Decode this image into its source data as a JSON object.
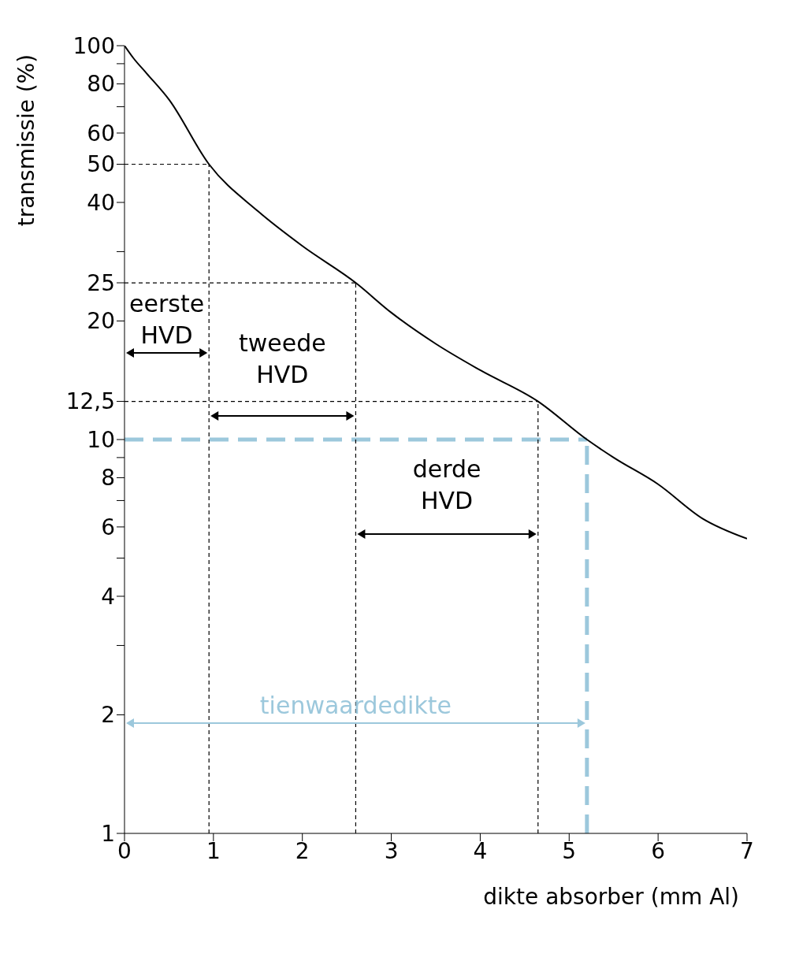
{
  "chart_data": {
    "type": "line",
    "xlabel": "dikte absorber (mm Al)",
    "ylabel": "transmissie (%)",
    "x": [
      0,
      0.1,
      0.25,
      0.5,
      0.95,
      1.5,
      2,
      2.6,
      3,
      3.5,
      4,
      4.65,
      5.2,
      5.5,
      6,
      6.5,
      7
    ],
    "series": [
      {
        "color": "#000000",
        "values": [
          100,
          93,
          85,
          73,
          50,
          38,
          31,
          25,
          21,
          17.5,
          15,
          12.5,
          10,
          9,
          7.7,
          6.3,
          5.6
        ]
      }
    ],
    "log": "y",
    "xlim": [
      0,
      7
    ],
    "ylim": [
      1,
      100
    ],
    "xticks": [
      0,
      1,
      2,
      3,
      4,
      5,
      6,
      7
    ],
    "yticks": [
      1,
      2,
      {
        "value": 3,
        "label": null
      },
      4,
      {
        "value": 5,
        "label": null
      },
      6,
      {
        "value": 7,
        "label": null
      },
      8,
      {
        "value": 9,
        "label": null
      },
      10,
      {
        "value": 12.5,
        "label": "12,5"
      },
      20,
      25,
      {
        "value": 30,
        "label": null
      },
      40,
      50,
      60,
      {
        "value": 70,
        "label": null
      },
      80,
      {
        "value": 90,
        "label": null
      },
      100
    ],
    "marker": "none",
    "line_style": "solid",
    "ref_lines": [
      {
        "axis": "y",
        "value": 50,
        "color": "#000000",
        "line_style": "dotted"
      },
      {
        "axis": "y",
        "value": 25,
        "color": "#000000",
        "line_style": "dotted"
      },
      {
        "axis": "y",
        "value": 12.5,
        "color": "#000000",
        "line_style": "dotted"
      },
      {
        "axis": "y",
        "value": 10,
        "color": "#9cc8dc",
        "line_style": "dashed"
      },
      {
        "axis": "x",
        "value": 0.95,
        "color": "#000000",
        "line_style": "dotted"
      },
      {
        "axis": "x",
        "value": 2.6,
        "color": "#000000",
        "line_style": "dotted"
      },
      {
        "axis": "x",
        "value": 4.65,
        "color": "#000000",
        "line_style": "dotted"
      },
      {
        "axis": "x",
        "value": 5.2,
        "color": "#9cc8dc",
        "line_style": "dashed"
      }
    ],
    "annotations": [
      "eerste HVD",
      "tweede HVD",
      "derde HVD",
      "tienwaardedikte"
    ]
  }
}
